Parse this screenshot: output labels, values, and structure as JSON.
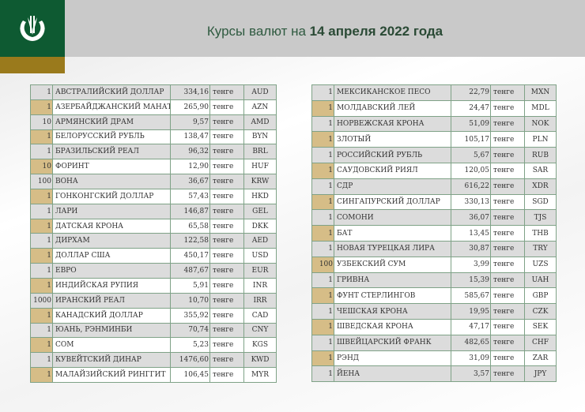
{
  "header": {
    "title_prefix": "Курсы валют на ",
    "title_date": "14 апреля 2022 года",
    "brand_color": "#0e5a32",
    "accent_color": "#9a7a1c",
    "logo_icon": "national-bank-emblem-icon"
  },
  "unit": "тенге",
  "left_table": [
    [
      "1",
      "АВСТРАЛИЙСКИЙ ДОЛЛАР",
      "334,16",
      "тенге",
      "AUD"
    ],
    [
      "1",
      "АЗЕРБАЙДЖАНСКИЙ МАНАТ",
      "265,90",
      "тенге",
      "AZN"
    ],
    [
      "10",
      "АРМЯНСКИЙ  ДРАМ",
      "9,57",
      "тенге",
      "AMD"
    ],
    [
      "1",
      "БЕЛОРУССКИЙ РУБЛЬ",
      "138,47",
      "тенге",
      "BYN"
    ],
    [
      "1",
      "БРАЗИЛЬСКИЙ РЕАЛ",
      "96,32",
      "тенге",
      "BRL"
    ],
    [
      "10",
      "ФОРИНТ",
      "12,90",
      "тенге",
      "HUF"
    ],
    [
      "100",
      "ВОНА",
      "36,67",
      "тенге",
      "KRW"
    ],
    [
      "1",
      "ГОНКОНГСКИЙ ДОЛЛАР",
      "57,43",
      "тенге",
      "HKD"
    ],
    [
      "1",
      "ЛАРИ",
      "146,87",
      "тенге",
      "GEL"
    ],
    [
      "1",
      "ДАТСКАЯ КРОНА",
      "65,58",
      "тенге",
      "DKK"
    ],
    [
      "1",
      "ДИРХАМ",
      "122,58",
      "тенге",
      "AED"
    ],
    [
      "1",
      "ДОЛЛАР США",
      "450,17",
      "тенге",
      "USD"
    ],
    [
      "1",
      "ЕВРО",
      "487,67",
      "тенге",
      "EUR"
    ],
    [
      "1",
      "ИНДИЙСКАЯ РУПИЯ",
      "5,91",
      "тенге",
      "INR"
    ],
    [
      "1000",
      "ИРАНСКИЙ РЕАЛ",
      "10,70",
      "тенге",
      "IRR"
    ],
    [
      "1",
      "КАНАДСКИЙ ДОЛЛАР",
      "355,92",
      "тенге",
      "CAD"
    ],
    [
      "1",
      "ЮАНЬ, РЭНМИНБИ",
      "70,74",
      "тенге",
      "CNY"
    ],
    [
      "1",
      "СОМ",
      "5,23",
      "тенге",
      "KGS"
    ],
    [
      "1",
      "КУВЕЙТСКИЙ ДИНАР",
      "1476,60",
      "тенге",
      "KWD"
    ],
    [
      "1",
      "МАЛАЙЗИЙСКИЙ РИНГГИТ",
      "106,45",
      "тенге",
      "MYR"
    ]
  ],
  "right_table": [
    [
      "1",
      "МЕКСИКАНСКОЕ ПЕСО",
      "22,79",
      "тенге",
      "MXN"
    ],
    [
      "1",
      "МОЛДАВСКИЙ ЛЕЙ",
      "24,47",
      "тенге",
      "MDL"
    ],
    [
      "1",
      "НОРВЕЖСКАЯ КРОНА",
      "51,09",
      "тенге",
      "NOK"
    ],
    [
      "1",
      "ЗЛОТЫЙ",
      "105,17",
      "тенге",
      "PLN"
    ],
    [
      "1",
      "РОССИЙСКИЙ РУБЛЬ",
      "5,67",
      "тенге",
      "RUB"
    ],
    [
      "1",
      "САУДОВСКИЙ РИЯЛ",
      "120,05",
      "тенге",
      "SAR"
    ],
    [
      "1",
      "СДР",
      "616,22",
      "тенге",
      "XDR"
    ],
    [
      "1",
      "СИНГАПУРСКИЙ ДОЛЛАР",
      "330,13",
      "тенге",
      "SGD"
    ],
    [
      "1",
      "СОМОНИ",
      "36,07",
      "тенге",
      "TJS"
    ],
    [
      "1",
      "БАТ",
      "13,45",
      "тенге",
      "THB"
    ],
    [
      "1",
      "НОВАЯ ТУРЕЦКАЯ ЛИРА",
      "30,87",
      "тенге",
      "TRY"
    ],
    [
      "100",
      "УЗБЕКСКИЙ СУМ",
      "3,99",
      "тенге",
      "UZS"
    ],
    [
      "1",
      "ГРИВНА",
      "15,39",
      "тенге",
      "UAH"
    ],
    [
      "1",
      "ФУНТ СТЕРЛИНГОВ",
      "585,67",
      "тенге",
      "GBP"
    ],
    [
      "1",
      "ЧЕШСКАЯ КРОНА",
      "19,95",
      "тенге",
      "CZK"
    ],
    [
      "1",
      "ШВЕДСКАЯ КРОНА",
      "47,17",
      "тенге",
      "SEK"
    ],
    [
      "1",
      "ШВЕЙЦАРСКИЙ ФРАНК",
      "482,65",
      "тенге",
      "CHF"
    ],
    [
      "1",
      "РЭНД",
      "31,09",
      "тенге",
      "ZAR"
    ],
    [
      "1",
      "ЙЕНА",
      "3,57",
      "тенге",
      "JPY"
    ]
  ]
}
